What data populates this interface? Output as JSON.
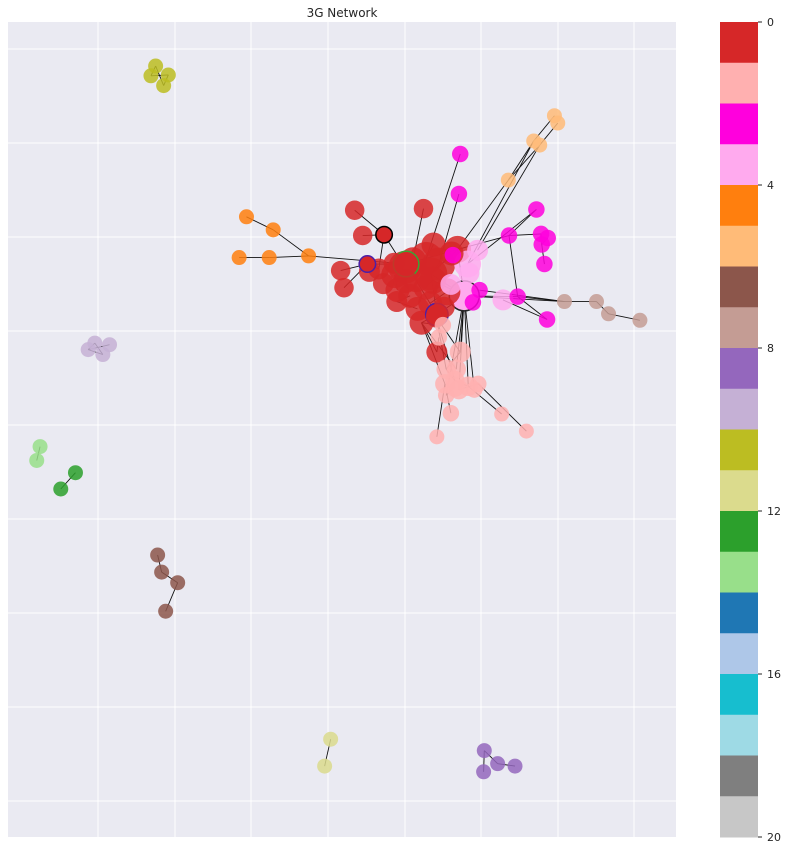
{
  "chart_data": {
    "type": "network",
    "title": "3G Network",
    "xlabel": "",
    "ylabel": "",
    "xlim": [
      0,
      100
    ],
    "ylim": [
      0,
      100
    ],
    "grid": true,
    "colorbar": {
      "range": [
        0,
        20
      ],
      "ticks": [
        0,
        4,
        8,
        12,
        16,
        20
      ],
      "tick_labels": [
        "0",
        "4",
        "8",
        "12",
        "16",
        "20"
      ],
      "colors": [
        "#d62728",
        "#ffb0b0",
        "#ff00dd",
        "#ffaaee",
        "#ff7f0e",
        "#ffbb78",
        "#8c564b",
        "#c49c94",
        "#9467bd",
        "#c5b0d5",
        "#bcbd22",
        "#dbdb8d",
        "#2ca02c",
        "#98df8a",
        "#1f77b4",
        "#aec7e8",
        "#17becf",
        "#9edae5",
        "#7f7f7f",
        "#c7c7c7"
      ]
    },
    "nodes": [
      {
        "id": "r1",
        "x": 59.4,
        "y": 30.1,
        "c": 0,
        "s": 2.2
      },
      {
        "id": "r2",
        "x": 63.3,
        "y": 30.9,
        "c": 0,
        "s": 2.2
      },
      {
        "id": "r3",
        "x": 62.6,
        "y": 29.0,
        "c": 0,
        "s": 2.2
      },
      {
        "id": "r4",
        "x": 64.5,
        "y": 29.7,
        "c": 0,
        "s": 2.2
      },
      {
        "id": "r5",
        "x": 61.1,
        "y": 31.3,
        "c": 0,
        "s": 2.0
      },
      {
        "id": "r6",
        "x": 57.9,
        "y": 31.0,
        "c": 0,
        "s": 1.8
      },
      {
        "id": "r7",
        "x": 58.3,
        "y": 32.9,
        "c": 0,
        "s": 1.6
      },
      {
        "id": "r8",
        "x": 60.2,
        "y": 33.6,
        "c": 0,
        "s": 1.6
      },
      {
        "id": "r9",
        "x": 62.5,
        "y": 32.6,
        "c": 0,
        "s": 1.6
      },
      {
        "id": "r10",
        "x": 63.2,
        "y": 34.5,
        "c": 0,
        "s": 1.6
      },
      {
        "id": "r11",
        "x": 61.3,
        "y": 35.2,
        "c": 0,
        "s": 1.6
      },
      {
        "id": "r12",
        "x": 65.7,
        "y": 33.1,
        "c": 0,
        "s": 1.8
      },
      {
        "id": "r13",
        "x": 67.3,
        "y": 27.9,
        "c": 0,
        "s": 1.8
      },
      {
        "id": "r14",
        "x": 63.7,
        "y": 27.3,
        "c": 0,
        "s": 1.6
      },
      {
        "id": "r15",
        "x": 55.5,
        "y": 30.3,
        "c": 0,
        "s": 1.4
      },
      {
        "id": "r16",
        "x": 56.2,
        "y": 32.1,
        "c": 0,
        "s": 1.4
      },
      {
        "id": "r17",
        "x": 54.1,
        "y": 30.6,
        "c": 0,
        "s": 1.4
      },
      {
        "id": "r18",
        "x": 53.1,
        "y": 26.2,
        "c": 0,
        "s": 1.3
      },
      {
        "id": "r19",
        "x": 51.9,
        "y": 23.1,
        "c": 0,
        "s": 1.3
      },
      {
        "id": "r20",
        "x": 62.2,
        "y": 22.9,
        "c": 0,
        "s": 1.3
      },
      {
        "id": "r21",
        "x": 49.8,
        "y": 30.5,
        "c": 0,
        "s": 1.3
      },
      {
        "id": "r22",
        "x": 50.3,
        "y": 32.6,
        "c": 0,
        "s": 1.3
      },
      {
        "id": "r23",
        "x": 58.2,
        "y": 34.3,
        "c": 0,
        "s": 1.4
      },
      {
        "id": "r24",
        "x": 61.9,
        "y": 36.9,
        "c": 0,
        "s": 1.6
      },
      {
        "id": "r25",
        "x": 64.1,
        "y": 36.2,
        "c": 0,
        "s": 1.4
      },
      {
        "id": "r26",
        "x": 64.2,
        "y": 40.5,
        "c": 0,
        "s": 1.4
      },
      {
        "id": "r27",
        "x": 57.8,
        "y": 29.6,
        "c": 0,
        "s": 1.4
      },
      {
        "id": "r28",
        "x": 63.6,
        "y": 31.7,
        "c": 0,
        "s": 1.8
      },
      {
        "id": "r29",
        "x": 66.4,
        "y": 28.4,
        "c": 0,
        "s": 1.6
      },
      {
        "id": "r30",
        "x": 59.5,
        "y": 31.8,
        "c": 0,
        "s": 1.6
      },
      {
        "id": "r31",
        "x": 60.6,
        "y": 29.3,
        "c": 0,
        "s": 1.8
      },
      {
        "id": "r32",
        "x": 65.3,
        "y": 35.0,
        "c": 0,
        "s": 1.4
      },
      {
        "id": "x1",
        "x": 56.3,
        "y": 26.1,
        "c": 0,
        "s": 1.1,
        "ring": "#000000"
      },
      {
        "id": "x2",
        "x": 53.8,
        "y": 29.7,
        "c": 0,
        "s": 1.1,
        "ring": "#4b1fa8"
      },
      {
        "id": "x3",
        "x": 59.6,
        "y": 29.7,
        "c": 0,
        "s": 1.7,
        "ring": "#3aa534"
      },
      {
        "id": "x4",
        "x": 64.2,
        "y": 35.9,
        "c": 0,
        "s": 1.5,
        "ring": "#4b1fa8"
      },
      {
        "id": "lp1",
        "x": 68.3,
        "y": 33.6,
        "c": 3,
        "s": 2.0,
        "ring": "#262626"
      },
      {
        "id": "lp2",
        "x": 68.8,
        "y": 29.7,
        "c": 3,
        "s": 1.8
      },
      {
        "id": "lp3",
        "x": 70.3,
        "y": 28.0,
        "c": 3,
        "s": 1.4
      },
      {
        "id": "lp4",
        "x": 66.3,
        "y": 32.2,
        "c": 3,
        "s": 1.4
      },
      {
        "id": "lp5",
        "x": 69.0,
        "y": 30.8,
        "c": 3,
        "s": 1.4
      },
      {
        "id": "lp6",
        "x": 74.1,
        "y": 34.1,
        "c": 3,
        "s": 1.4
      },
      {
        "id": "m1",
        "x": 67.7,
        "y": 16.2,
        "c": 2,
        "s": 1.1
      },
      {
        "id": "m2",
        "x": 67.5,
        "y": 21.1,
        "c": 2,
        "s": 1.1
      },
      {
        "id": "m3",
        "x": 79.1,
        "y": 23.0,
        "c": 2,
        "s": 1.1
      },
      {
        "id": "m4",
        "x": 75.0,
        "y": 26.2,
        "c": 2,
        "s": 1.1
      },
      {
        "id": "m5",
        "x": 79.8,
        "y": 26.0,
        "c": 2,
        "s": 1.1
      },
      {
        "id": "m6",
        "x": 80.8,
        "y": 26.5,
        "c": 2,
        "s": 1.1
      },
      {
        "id": "m7",
        "x": 79.9,
        "y": 27.3,
        "c": 2,
        "s": 1.1
      },
      {
        "id": "m8",
        "x": 80.3,
        "y": 29.7,
        "c": 2,
        "s": 1.1
      },
      {
        "id": "m9",
        "x": 76.3,
        "y": 33.7,
        "c": 2,
        "s": 1.1
      },
      {
        "id": "m10",
        "x": 80.7,
        "y": 36.5,
        "c": 2,
        "s": 1.1
      },
      {
        "id": "m11",
        "x": 66.6,
        "y": 28.6,
        "c": 2,
        "s": 1.1
      },
      {
        "id": "m12",
        "x": 70.6,
        "y": 32.9,
        "c": 2,
        "s": 1.1
      },
      {
        "id": "m13",
        "x": 69.6,
        "y": 34.4,
        "c": 2,
        "s": 1.1
      },
      {
        "id": "pk1",
        "x": 65.1,
        "y": 37.2,
        "c": 1,
        "s": 1.1
      },
      {
        "id": "pk2",
        "x": 67.7,
        "y": 40.5,
        "c": 1,
        "s": 1.4
      },
      {
        "id": "pk3",
        "x": 65.6,
        "y": 42.6,
        "c": 1,
        "s": 1.3
      },
      {
        "id": "pk4",
        "x": 67.1,
        "y": 42.6,
        "c": 1,
        "s": 1.3
      },
      {
        "id": "pk5",
        "x": 66.9,
        "y": 44.0,
        "c": 1,
        "s": 1.3
      },
      {
        "id": "pk6",
        "x": 65.4,
        "y": 44.4,
        "c": 1,
        "s": 1.3
      },
      {
        "id": "pk7",
        "x": 67.5,
        "y": 45.1,
        "c": 1,
        "s": 1.3
      },
      {
        "id": "pk8",
        "x": 66.9,
        "y": 44.8,
        "c": 1,
        "s": 1.3
      },
      {
        "id": "pk9",
        "x": 68.9,
        "y": 44.7,
        "c": 1,
        "s": 1.3
      },
      {
        "id": "pk10",
        "x": 70.4,
        "y": 44.4,
        "c": 1,
        "s": 1.1
      },
      {
        "id": "pk11",
        "x": 69.8,
        "y": 45.1,
        "c": 1,
        "s": 1.1
      },
      {
        "id": "pk12",
        "x": 65.6,
        "y": 45.8,
        "c": 1,
        "s": 1.1
      },
      {
        "id": "pk13",
        "x": 66.3,
        "y": 48.0,
        "c": 1,
        "s": 1.1
      },
      {
        "id": "pk14",
        "x": 64.2,
        "y": 50.9,
        "c": 1,
        "s": 1.0
      },
      {
        "id": "pk15",
        "x": 73.9,
        "y": 48.1,
        "c": 1,
        "s": 1.0
      },
      {
        "id": "pk16",
        "x": 77.6,
        "y": 50.2,
        "c": 1,
        "s": 1.0
      },
      {
        "id": "pk17",
        "x": 64.5,
        "y": 38.7,
        "c": 1,
        "s": 1.1
      },
      {
        "id": "or1",
        "x": 35.7,
        "y": 23.9,
        "c": 4,
        "s": 1.0
      },
      {
        "id": "or2",
        "x": 39.7,
        "y": 25.5,
        "c": 4,
        "s": 1.0
      },
      {
        "id": "or3",
        "x": 45.0,
        "y": 28.7,
        "c": 4,
        "s": 1.0
      },
      {
        "id": "or4",
        "x": 39.1,
        "y": 28.9,
        "c": 4,
        "s": 1.0
      },
      {
        "id": "or5",
        "x": 34.6,
        "y": 28.9,
        "c": 4,
        "s": 1.0
      },
      {
        "id": "pc1",
        "x": 81.8,
        "y": 11.5,
        "c": 5,
        "s": 1.0
      },
      {
        "id": "pc2",
        "x": 82.3,
        "y": 12.4,
        "c": 5,
        "s": 1.0
      },
      {
        "id": "pc3",
        "x": 78.7,
        "y": 14.6,
        "c": 5,
        "s": 1.0
      },
      {
        "id": "pc4",
        "x": 79.6,
        "y": 15.1,
        "c": 5,
        "s": 1.0
      },
      {
        "id": "pc5",
        "x": 74.9,
        "y": 19.4,
        "c": 5,
        "s": 1.0
      },
      {
        "id": "tn1",
        "x": 83.3,
        "y": 34.3,
        "c": 7,
        "s": 1.0
      },
      {
        "id": "tn2",
        "x": 88.1,
        "y": 34.3,
        "c": 7,
        "s": 1.0
      },
      {
        "id": "tn3",
        "x": 89.9,
        "y": 35.8,
        "c": 7,
        "s": 1.0
      },
      {
        "id": "tn4",
        "x": 94.6,
        "y": 36.6,
        "c": 7,
        "s": 1.0
      },
      {
        "id": "ol1",
        "x": 22.1,
        "y": 5.4,
        "c": 10,
        "s": 1.0
      },
      {
        "id": "ol2",
        "x": 21.4,
        "y": 6.6,
        "c": 10,
        "s": 1.0
      },
      {
        "id": "ol3",
        "x": 24.0,
        "y": 6.5,
        "c": 10,
        "s": 1.0
      },
      {
        "id": "ol4",
        "x": 23.3,
        "y": 7.8,
        "c": 10,
        "s": 1.0
      },
      {
        "id": "lv1",
        "x": 13.0,
        "y": 39.4,
        "c": 9,
        "s": 1.0
      },
      {
        "id": "lv2",
        "x": 15.2,
        "y": 39.6,
        "c": 9,
        "s": 1.0
      },
      {
        "id": "lv3",
        "x": 12.0,
        "y": 40.2,
        "c": 9,
        "s": 1.0
      },
      {
        "id": "lv4",
        "x": 14.2,
        "y": 40.8,
        "c": 9,
        "s": 1.0
      },
      {
        "id": "lg1",
        "x": 4.8,
        "y": 52.1,
        "c": 13,
        "s": 1.0
      },
      {
        "id": "lg2",
        "x": 4.3,
        "y": 53.8,
        "c": 13,
        "s": 1.0
      },
      {
        "id": "dg1",
        "x": 10.1,
        "y": 55.3,
        "c": 12,
        "s": 1.0
      },
      {
        "id": "dg2",
        "x": 7.9,
        "y": 57.3,
        "c": 12,
        "s": 1.0
      },
      {
        "id": "br1",
        "x": 22.4,
        "y": 65.4,
        "c": 6,
        "s": 1.0
      },
      {
        "id": "br2",
        "x": 23.0,
        "y": 67.5,
        "c": 6,
        "s": 1.0
      },
      {
        "id": "br3",
        "x": 25.4,
        "y": 68.8,
        "c": 6,
        "s": 1.0
      },
      {
        "id": "br4",
        "x": 23.6,
        "y": 72.3,
        "c": 6,
        "s": 1.0
      },
      {
        "id": "kh1",
        "x": 48.3,
        "y": 88.0,
        "c": 11,
        "s": 1.0
      },
      {
        "id": "kh2",
        "x": 47.4,
        "y": 91.3,
        "c": 11,
        "s": 1.0
      },
      {
        "id": "pu1",
        "x": 71.3,
        "y": 89.4,
        "c": 8,
        "s": 1.0
      },
      {
        "id": "pu2",
        "x": 73.3,
        "y": 91.0,
        "c": 8,
        "s": 1.0
      },
      {
        "id": "pu3",
        "x": 75.9,
        "y": 91.3,
        "c": 8,
        "s": 1.0
      },
      {
        "id": "pu4",
        "x": 71.2,
        "y": 92.0,
        "c": 8,
        "s": 1.0
      }
    ],
    "edges": [
      [
        "r18",
        "x1"
      ],
      [
        "r19",
        "x1"
      ],
      [
        "x1",
        "r15"
      ],
      [
        "x1",
        "r1"
      ],
      [
        "r20",
        "r31"
      ],
      [
        "r21",
        "x2"
      ],
      [
        "r22",
        "x2"
      ],
      [
        "x2",
        "x3"
      ],
      [
        "x2",
        "r15"
      ],
      [
        "or3",
        "x3"
      ],
      [
        "or4",
        "or3"
      ],
      [
        "or5",
        "or4"
      ],
      [
        "or2",
        "or3"
      ],
      [
        "or1",
        "or2"
      ],
      [
        "pc1",
        "pc3"
      ],
      [
        "pc2",
        "pc4"
      ],
      [
        "pc3",
        "pc5"
      ],
      [
        "pc4",
        "pc5"
      ],
      [
        "pc5",
        "r13"
      ],
      [
        "pc3",
        "lp2"
      ],
      [
        "pc4",
        "lp3"
      ],
      [
        "m1",
        "r3"
      ],
      [
        "m2",
        "r4"
      ],
      [
        "m3",
        "m4"
      ],
      [
        "m3",
        "lp2"
      ],
      [
        "m4",
        "r13"
      ],
      [
        "m4",
        "m5"
      ],
      [
        "m5",
        "m7"
      ],
      [
        "m6",
        "m7"
      ],
      [
        "m7",
        "m8"
      ],
      [
        "m9",
        "lp1"
      ],
      [
        "m9",
        "tn1"
      ],
      [
        "m9",
        "m4"
      ],
      [
        "m10",
        "m9"
      ],
      [
        "m10",
        "lp6"
      ],
      [
        "tn1",
        "tn2"
      ],
      [
        "tn2",
        "tn3"
      ],
      [
        "tn3",
        "tn4"
      ],
      [
        "tn1",
        "lp1"
      ],
      [
        "tn1",
        "m12"
      ],
      [
        "r13",
        "r2"
      ],
      [
        "r13",
        "r3"
      ],
      [
        "r13",
        "lp1"
      ],
      [
        "r12",
        "lp1"
      ],
      [
        "r24",
        "pk1"
      ],
      [
        "r24",
        "pk4"
      ],
      [
        "r24",
        "pk6"
      ],
      [
        "r24",
        "r26"
      ],
      [
        "r25",
        "pk2"
      ],
      [
        "r25",
        "pk5"
      ],
      [
        "r25",
        "pk3"
      ],
      [
        "lp1",
        "pk2"
      ],
      [
        "lp1",
        "pk4"
      ],
      [
        "lp1",
        "pk9"
      ],
      [
        "lp1",
        "pk7"
      ],
      [
        "lp1",
        "pk11"
      ],
      [
        "lp1",
        "pk12"
      ],
      [
        "pk2",
        "pk3"
      ],
      [
        "pk3",
        "pk5"
      ],
      [
        "pk5",
        "pk9"
      ],
      [
        "pk6",
        "pk13"
      ],
      [
        "pk6",
        "pk14"
      ],
      [
        "pk9",
        "pk15"
      ],
      [
        "pk10",
        "pk16"
      ],
      [
        "pk7",
        "pk10"
      ],
      [
        "pk8",
        "pk12"
      ],
      [
        "r26",
        "pk17"
      ],
      [
        "r23",
        "r8"
      ],
      [
        "r7",
        "r6"
      ],
      [
        "r5",
        "r1"
      ],
      [
        "r9",
        "r28"
      ],
      [
        "r14",
        "r3"
      ],
      [
        "x3",
        "r3"
      ],
      [
        "x3",
        "r2"
      ],
      [
        "x3",
        "r1"
      ],
      [
        "x3",
        "x4"
      ],
      [
        "x4",
        "r2"
      ],
      [
        "x4",
        "r25"
      ],
      [
        "x4",
        "r24"
      ],
      [
        "lp1",
        "r28"
      ],
      [
        "lp1",
        "r2"
      ],
      [
        "lp1",
        "x4"
      ],
      [
        "r2",
        "r28"
      ],
      [
        "r2",
        "r4"
      ],
      [
        "r11",
        "r23"
      ],
      [
        "r10",
        "r12"
      ],
      [
        "ol1",
        "ol2"
      ],
      [
        "ol1",
        "ol4"
      ],
      [
        "ol2",
        "ol3"
      ],
      [
        "ol3",
        "ol4"
      ],
      [
        "lv1",
        "lv3"
      ],
      [
        "lv1",
        "lv4"
      ],
      [
        "lv2",
        "lv3"
      ],
      [
        "lv3",
        "lv4"
      ],
      [
        "lg1",
        "lg2"
      ],
      [
        "dg1",
        "dg2"
      ],
      [
        "br1",
        "br2"
      ],
      [
        "br2",
        "br3"
      ],
      [
        "br3",
        "br4"
      ],
      [
        "kh1",
        "kh2"
      ],
      [
        "pu1",
        "pu2"
      ],
      [
        "pu2",
        "pu3"
      ],
      [
        "pu1",
        "pu4"
      ]
    ]
  }
}
